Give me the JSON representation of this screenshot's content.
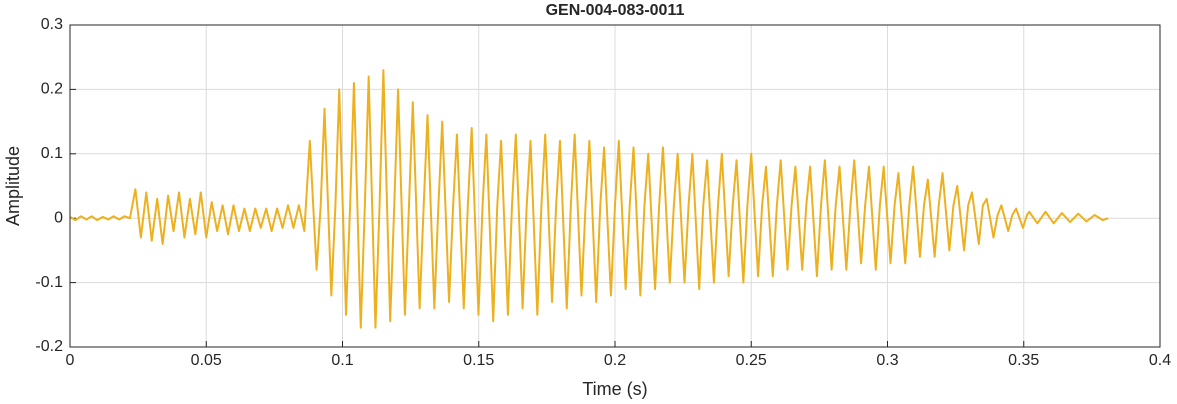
{
  "chart_data": {
    "type": "line",
    "title": "GEN-004-083-0011",
    "x_label": "Time (s)",
    "y_label": "Amplitude",
    "color": "#EDB120",
    "grid": true,
    "xlim": [
      0,
      0.4
    ],
    "xticks": [
      0,
      0.05,
      0.1,
      0.15,
      0.2,
      0.25,
      0.3,
      0.35,
      0.4
    ],
    "ylim": [
      -0.2,
      0.3
    ],
    "yticks": [
      -0.2,
      -0.1,
      0,
      0.1,
      0.2,
      0.3
    ],
    "x": [
      0,
      0.002,
      0.004,
      0.006,
      0.008,
      0.01,
      0.012,
      0.014,
      0.016,
      0.018,
      0.02,
      0.022,
      0.024,
      0.026,
      0.028,
      0.03,
      0.032,
      0.034,
      0.036,
      0.038,
      0.04,
      0.042,
      0.044,
      0.046,
      0.048,
      0.05,
      0.052,
      0.054,
      0.056,
      0.058,
      0.06,
      0.062,
      0.064,
      0.066,
      0.068,
      0.07,
      0.072,
      0.074,
      0.076,
      0.078,
      0.08,
      0.082,
      0.084,
      0.086,
      0.088,
      0.0905,
      0.092,
      0.0934,
      0.0959,
      0.0974,
      0.0988,
      0.1013,
      0.1028,
      0.1042,
      0.1067,
      0.1082,
      0.1096,
      0.1121,
      0.1136,
      0.115,
      0.1175,
      0.119,
      0.1204,
      0.1229,
      0.1244,
      0.1258,
      0.1283,
      0.1298,
      0.1312,
      0.1337,
      0.1352,
      0.1366,
      0.1391,
      0.1406,
      0.142,
      0.1445,
      0.146,
      0.1474,
      0.1499,
      0.1514,
      0.1528,
      0.1553,
      0.1568,
      0.1582,
      0.1607,
      0.1622,
      0.1636,
      0.1661,
      0.1676,
      0.169,
      0.1715,
      0.173,
      0.1744,
      0.1769,
      0.1784,
      0.1798,
      0.1823,
      0.1838,
      0.1852,
      0.1877,
      0.1892,
      0.1906,
      0.1931,
      0.1946,
      0.196,
      0.1985,
      0.2,
      0.2014,
      0.2039,
      0.2054,
      0.2068,
      0.2093,
      0.2108,
      0.2122,
      0.2147,
      0.2162,
      0.2176,
      0.2201,
      0.2216,
      0.223,
      0.2255,
      0.227,
      0.2284,
      0.2309,
      0.2324,
      0.2338,
      0.2363,
      0.2378,
      0.2392,
      0.2417,
      0.2432,
      0.2446,
      0.2471,
      0.2486,
      0.25,
      0.2525,
      0.254,
      0.2554,
      0.2579,
      0.2594,
      0.2608,
      0.2633,
      0.2648,
      0.2662,
      0.2687,
      0.2702,
      0.2716,
      0.2741,
      0.2756,
      0.277,
      0.2795,
      0.281,
      0.2824,
      0.2849,
      0.2864,
      0.2878,
      0.2903,
      0.2918,
      0.2932,
      0.2957,
      0.2972,
      0.2986,
      0.3011,
      0.3026,
      0.304,
      0.3065,
      0.308,
      0.3094,
      0.3119,
      0.3134,
      0.3148,
      0.3173,
      0.3188,
      0.3202,
      0.3227,
      0.3242,
      0.3256,
      0.3281,
      0.3296,
      0.331,
      0.3335,
      0.335,
      0.3364,
      0.3389,
      0.3404,
      0.3418,
      0.3443,
      0.3458,
      0.3472,
      0.3497,
      0.3512,
      0.352,
      0.355,
      0.358,
      0.361,
      0.364,
      0.367,
      0.37,
      0.373,
      0.376,
      0.379,
      0.381
    ],
    "values": [
      0.002,
      -0.003,
      0.003,
      -0.002,
      0.003,
      -0.003,
      0.002,
      -0.002,
      0.003,
      -0.002,
      0.003,
      0.0,
      0.045,
      -0.03,
      0.04,
      -0.035,
      0.03,
      -0.04,
      0.035,
      -0.02,
      0.04,
      -0.03,
      0.03,
      -0.025,
      0.04,
      -0.03,
      0.025,
      -0.02,
      0.02,
      -0.025,
      0.02,
      -0.02,
      0.015,
      -0.02,
      0.015,
      -0.015,
      0.015,
      -0.02,
      0.015,
      -0.015,
      0.02,
      -0.015,
      0.02,
      -0.02,
      0.12,
      -0.08,
      0.02,
      0.17,
      -0.12,
      0.02,
      0.2,
      -0.15,
      0.02,
      0.21,
      -0.17,
      0.02,
      0.22,
      -0.17,
      0.02,
      0.23,
      -0.16,
      0.02,
      0.2,
      -0.15,
      0.02,
      0.18,
      -0.14,
      0.02,
      0.16,
      -0.14,
      0.02,
      0.15,
      -0.13,
      0.02,
      0.13,
      -0.14,
      0.02,
      0.14,
      -0.15,
      0.02,
      0.13,
      -0.16,
      0.02,
      0.12,
      -0.15,
      0.02,
      0.13,
      -0.14,
      0.02,
      0.12,
      -0.15,
      0.02,
      0.13,
      -0.13,
      0.02,
      0.12,
      -0.14,
      0.02,
      0.13,
      -0.12,
      0.02,
      0.12,
      -0.13,
      0.02,
      0.11,
      -0.12,
      0.02,
      0.12,
      -0.11,
      0.02,
      0.11,
      -0.12,
      0.02,
      0.1,
      -0.11,
      0.02,
      0.11,
      -0.1,
      0.02,
      0.1,
      -0.1,
      0.02,
      0.1,
      -0.11,
      0.02,
      0.09,
      -0.1,
      0.02,
      0.1,
      -0.09,
      0.02,
      0.09,
      -0.1,
      0.02,
      0.1,
      -0.09,
      0.02,
      0.08,
      -0.09,
      0.02,
      0.09,
      -0.08,
      0.02,
      0.08,
      -0.08,
      0.02,
      0.08,
      -0.09,
      0.02,
      0.09,
      -0.08,
      0.02,
      0.08,
      -0.08,
      0.02,
      0.09,
      -0.07,
      0.02,
      0.08,
      -0.08,
      0.02,
      0.08,
      -0.07,
      0.02,
      0.07,
      -0.07,
      0.02,
      0.08,
      -0.06,
      0.02,
      0.06,
      -0.06,
      0.02,
      0.07,
      -0.05,
      0.02,
      0.05,
      -0.05,
      0.02,
      0.04,
      -0.04,
      0.02,
      0.03,
      -0.03,
      0.005,
      0.02,
      -0.02,
      0.005,
      0.015,
      -0.015,
      0.005,
      0.01,
      -0.008,
      0.01,
      -0.008,
      0.008,
      -0.006,
      0.007,
      -0.005,
      0.005,
      -0.003,
      0.0
    ]
  }
}
